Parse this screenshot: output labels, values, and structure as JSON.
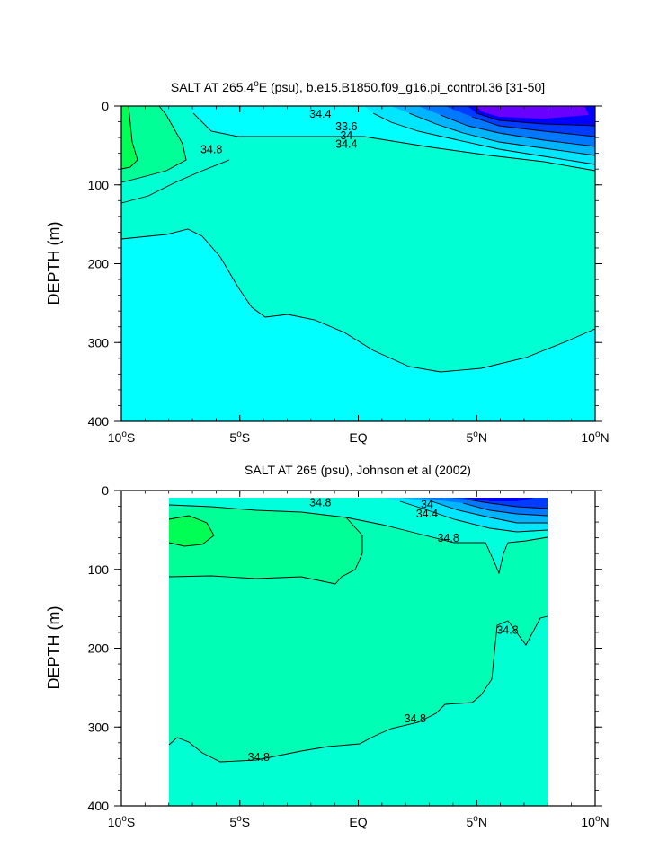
{
  "chart_data": [
    {
      "type": "contour",
      "title": "SALT AT 265.4°E (psu), b.e15.B1850.f09_g16.pi_control.36 [31-50]",
      "title_parts": {
        "pre": "SALT AT 265.4",
        "sup": "o",
        "post": "E (psu), b.e15.B1850.f09_g16.pi_control.36 [31-50]"
      },
      "xlabel": "",
      "ylabel": "DEPTH (m)",
      "xlim": [
        -10,
        10
      ],
      "ylim": [
        0,
        400
      ],
      "y_reversed": true,
      "x_ticks": [
        {
          "value": -10,
          "num": "10",
          "sup": "o",
          "hemi": "S"
        },
        {
          "value": -5,
          "num": "5",
          "sup": "o",
          "hemi": "S"
        },
        {
          "value": 0,
          "num": "EQ",
          "sup": "",
          "hemi": ""
        },
        {
          "value": 5,
          "num": "5",
          "sup": "o",
          "hemi": "N"
        },
        {
          "value": 10,
          "num": "10",
          "sup": "o",
          "hemi": "N"
        }
      ],
      "y_ticks": [
        "0",
        "100",
        "200",
        "300",
        "400"
      ],
      "contour_labels": [
        {
          "text": "34.4",
          "lat": -1.6,
          "depth": 15
        },
        {
          "text": "34.8",
          "lat": -6.2,
          "depth": 60
        },
        {
          "text": "33.6",
          "lat": -0.5,
          "depth": 31
        },
        {
          "text": "34",
          "lat": -0.5,
          "depth": 42
        },
        {
          "text": "34.4",
          "lat": -0.5,
          "depth": 53
        }
      ],
      "colors": {
        "fresh_violet": "#6a00ff",
        "blue": "#0000ff",
        "cyan": "#00ffff",
        "aqua": "#00ffd2",
        "green": "#00ff55"
      }
    },
    {
      "type": "contour",
      "title": "SALT AT 265 (psu), Johnson et al (2002)",
      "xlabel": "",
      "ylabel": "DEPTH (m)",
      "xlim": [
        -10,
        10
      ],
      "ylim": [
        0,
        400
      ],
      "y_reversed": true,
      "data_xrange": [
        -8,
        8
      ],
      "x_ticks": [
        {
          "value": -10,
          "num": "10",
          "sup": "o",
          "hemi": "S"
        },
        {
          "value": -5,
          "num": "5",
          "sup": "o",
          "hemi": "S"
        },
        {
          "value": 0,
          "num": "EQ",
          "sup": "",
          "hemi": ""
        },
        {
          "value": 5,
          "num": "5",
          "sup": "o",
          "hemi": "N"
        },
        {
          "value": 10,
          "num": "10",
          "sup": "o",
          "hemi": "N"
        }
      ],
      "y_ticks": [
        "0",
        "100",
        "200",
        "300",
        "400"
      ],
      "contour_labels": [
        {
          "text": "34.8",
          "lat": -1.6,
          "depth": 20
        },
        {
          "text": "34",
          "lat": 2.9,
          "depth": 22
        },
        {
          "text": "34.4",
          "lat": 2.9,
          "depth": 34
        },
        {
          "text": "34.8",
          "lat": 3.8,
          "depth": 65
        },
        {
          "text": "34.8",
          "lat": 6.3,
          "depth": 182
        },
        {
          "text": "34.8",
          "lat": 2.4,
          "depth": 294
        },
        {
          "text": "34.8",
          "lat": -4.2,
          "depth": 343
        }
      ]
    }
  ]
}
